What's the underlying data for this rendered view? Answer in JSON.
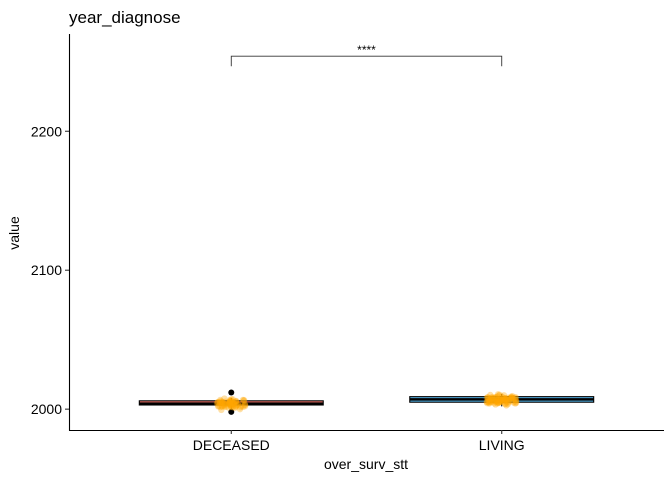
{
  "chart_data": {
    "type": "box",
    "title": "year_diagnose",
    "xlabel": "over_surv_stt",
    "ylabel": "value",
    "categories": [
      "DECEASED",
      "LIVING"
    ],
    "ylim": [
      1985,
      2270
    ],
    "yticks": [
      2000,
      2100,
      2200
    ],
    "grid": false,
    "legend": "none",
    "boxes": [
      {
        "category": "DECEASED",
        "min": 1999,
        "q1": 2003,
        "median": 2004,
        "q3": 2006,
        "max": 2008,
        "outliers": [
          1998,
          2012
        ],
        "fill": "#F8766D"
      },
      {
        "category": "LIVING",
        "min": 2002,
        "q1": 2005,
        "median": 2007,
        "q3": 2009,
        "max": 2011,
        "outliers": [],
        "fill": "#56B4E9"
      }
    ],
    "jitter_color": "#FFA500",
    "jitter": [
      {
        "category": "DECEASED",
        "center": 2004,
        "spread": 5,
        "n": 70
      },
      {
        "category": "LIVING",
        "center": 2007,
        "spread": 5,
        "n": 90
      }
    ],
    "significance": {
      "from": "DECEASED",
      "to": "LIVING",
      "y": 2254,
      "label": "****"
    }
  }
}
